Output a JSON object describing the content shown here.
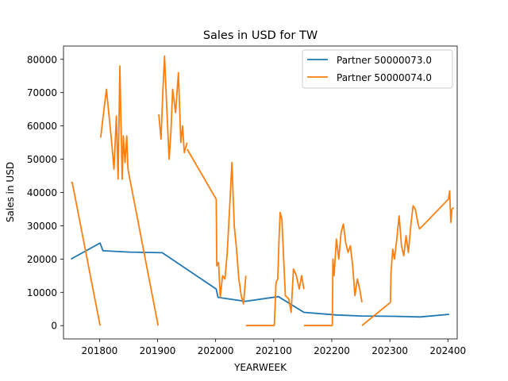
{
  "chart_data": {
    "type": "line",
    "title": "Sales in USD for TW",
    "xlabel": "YEARWEEK",
    "ylabel": "Sales in USD",
    "xlim": [
      201738,
      202416
    ],
    "ylim": [
      -4000,
      84000
    ],
    "xticks": [
      201800,
      201900,
      202000,
      202100,
      202200,
      202300,
      202400
    ],
    "xtick_labels": [
      "201800",
      "201900",
      "202000",
      "202100",
      "202200",
      "202300",
      "202400"
    ],
    "yticks": [
      0,
      10000,
      20000,
      30000,
      40000,
      50000,
      60000,
      70000,
      80000
    ],
    "ytick_labels": [
      "0",
      "10000",
      "20000",
      "30000",
      "40000",
      "50000",
      "60000",
      "70000",
      "80000"
    ],
    "grid": false,
    "legend_position": "upper right",
    "series": [
      {
        "name": "Partner 50000073.0",
        "color": "#1f77b4",
        "x": [
          201751,
          201753,
          201801,
          201806,
          201852,
          201908,
          202001,
          202004,
          202051,
          202108,
          202152,
          202208,
          202251,
          202308,
          202352,
          202402
        ],
        "y": [
          20000,
          20200,
          24800,
          22500,
          22100,
          21900,
          11000,
          8500,
          7300,
          8700,
          4000,
          3200,
          2900,
          2800,
          2600,
          3400
        ]
      },
      {
        "name": "Partner 50000074.0",
        "color": "#ff7f0e",
        "segments": [
          {
            "x": [
              201751,
              201752,
              201753,
              201801
            ],
            "y": [
              43000,
              43000,
              43000,
              0
            ]
          },
          {
            "x": [
              201802,
              201807,
              201812,
              201821,
              201825,
              201829,
              201832,
              201835,
              201839,
              201841,
              201844,
              201847,
              201849
            ],
            "y": [
              56500,
              64000,
              71000,
              55000,
              47000,
              63000,
              44000,
              78000,
              44000,
              57000,
              49000,
              57000,
              47000
            ]
          },
          {
            "x": [
              201849,
              201901
            ],
            "y": [
              47000,
              0
            ]
          },
          {
            "x": [
              201902,
              201906,
              201909,
              201912,
              201916,
              201920,
              201923,
              201926,
              201931,
              201936,
              201940,
              201943,
              201946,
              201951
            ],
            "y": [
              63500,
              56000,
              70000,
              81000,
              65000,
              50000,
              58000,
              71000,
              64000,
              76000,
              55000,
              60000,
              52000,
              55000
            ]
          },
          {
            "x": [
              201951,
              202001
            ],
            "y": [
              53000,
              38000
            ]
          },
          {
            "x": [
              202001,
              202002,
              202005,
              202008,
              202012,
              202016,
              202020,
              202024,
              202028,
              202032,
              202036,
              202040,
              202044,
              202048,
              202052
            ],
            "y": [
              38000,
              18000,
              19000,
              8500,
              15000,
              14000,
              22000,
              35000,
              49000,
              30000,
              23000,
              14000,
              9000,
              6500,
              15000
            ]
          },
          {
            "x": [
              202052,
              202101
            ],
            "y": [
              0,
              0
            ]
          },
          {
            "x": [
              202101,
              202104,
              202107,
              202109,
              202111,
              202114,
              202120,
              202126,
              202130,
              202134,
              202139,
              202144,
              202148,
              202152
            ],
            "y": [
              0,
              13000,
              14000,
              25000,
              34000,
              32000,
              9000,
              8000,
              4000,
              17000,
              15000,
              11000,
              15000,
              11000
            ]
          },
          {
            "x": [
              202152,
              202201
            ],
            "y": [
              0,
              0
            ]
          },
          {
            "x": [
              202201,
              202202,
              202204,
              202208,
              202212,
              202216,
              202220,
              202224,
              202228,
              202232,
              202236,
              202240,
              202244,
              202248,
              202252
            ],
            "y": [
              0,
              20000,
              15000,
              26000,
              20000,
              28000,
              30500,
              25000,
              22000,
              24000,
              18000,
              9000,
              14000,
              11000,
              7000
            ]
          },
          {
            "x": [
              202252,
              202301
            ],
            "y": [
              0,
              7000
            ]
          },
          {
            "x": [
              202301,
              202302,
              202305,
              202308,
              202312,
              202316,
              202320,
              202324,
              202328,
              202332,
              202336,
              202340,
              202344,
              202348,
              202351
            ],
            "y": [
              7000,
              16000,
              23000,
              20000,
              26000,
              33000,
              24000,
              21000,
              27000,
              22000,
              30000,
              36000,
              35000,
              31000,
              29000
            ]
          },
          {
            "x": [
              202351,
              202401
            ],
            "y": [
              29000,
              38000
            ]
          },
          {
            "x": [
              202401,
              202403,
              202405,
              202407,
              202410
            ],
            "y": [
              38000,
              40500,
              31000,
              35000,
              35500
            ]
          }
        ]
      }
    ]
  }
}
